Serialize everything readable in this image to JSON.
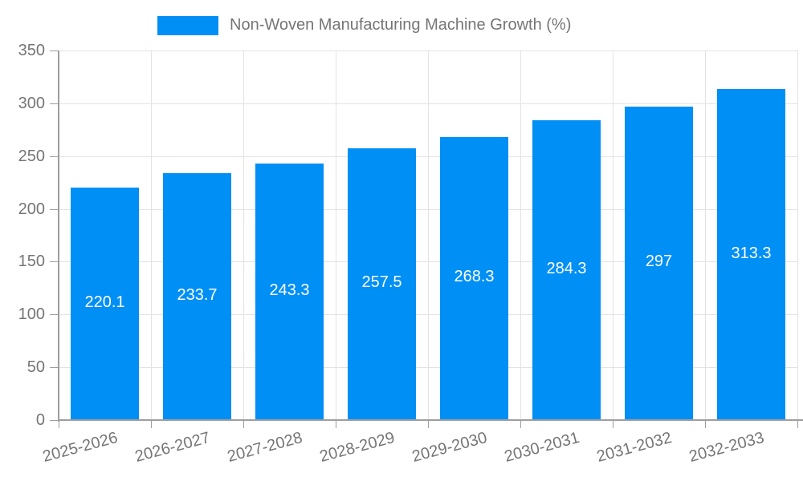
{
  "legend": {
    "label": "Non-Woven Manufacturing Machine Growth (%)"
  },
  "chart_data": {
    "type": "bar",
    "title": "",
    "xlabel": "",
    "ylabel": "",
    "categories": [
      "2025-2026",
      "2026-2027",
      "2027-2028",
      "2028-2029",
      "2029-2030",
      "2030-2031",
      "2031-2032",
      "2032-2033"
    ],
    "series": [
      {
        "name": "Non-Woven Manufacturing Machine Growth (%)",
        "values": [
          220.1,
          233.7,
          243.3,
          257.5,
          268.3,
          284.3,
          297,
          313.3
        ]
      }
    ],
    "value_labels": [
      "220.1",
      "233.7",
      "243.3",
      "257.5",
      "268.3",
      "284.3",
      "297",
      "313.3"
    ],
    "ylim": [
      0,
      350
    ],
    "y_ticks": [
      0,
      50,
      100,
      150,
      200,
      250,
      300,
      350
    ],
    "grid": true,
    "legend_position": "top",
    "colors": {
      "bar": "#008FF5",
      "grid": "#E3E3E3",
      "axis": "#9E9E9E",
      "tick_label": "#757575",
      "value_label": "#FFFFFF",
      "background": "#FFFFFF"
    }
  }
}
